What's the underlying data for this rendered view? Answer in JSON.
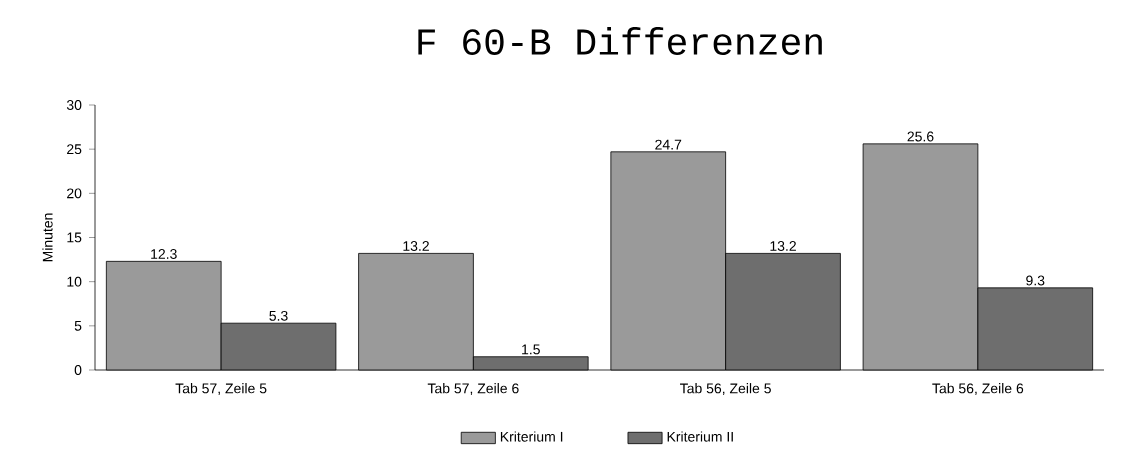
{
  "chart_data": {
    "type": "bar",
    "title": "F 60-B   Differenzen",
    "ylabel": "Minuten",
    "categories": [
      "Tab 57, Zeile 5",
      "Tab 57, Zeile 6",
      "Tab 56,  Zeile 5",
      "Tab 56, Zeile 6"
    ],
    "series": [
      {
        "name": "Kriterium I",
        "color": "#9a9a9a",
        "values": [
          12.3,
          13.2,
          24.7,
          25.6
        ],
        "value_labels": [
          "12.3",
          "13.2",
          "24.7",
          "25.6"
        ]
      },
      {
        "name": "Kriterium II",
        "color": "#6e6e6e",
        "values": [
          5.3,
          1.5,
          13.2,
          9.3
        ],
        "value_labels": [
          "5.3",
          "1.5",
          "13.2",
          "9.3"
        ]
      }
    ],
    "ylim": [
      0,
      30
    ],
    "yticks": [
      0,
      5,
      10,
      15,
      20,
      25,
      30
    ],
    "grid": false,
    "legend": "bottom"
  }
}
